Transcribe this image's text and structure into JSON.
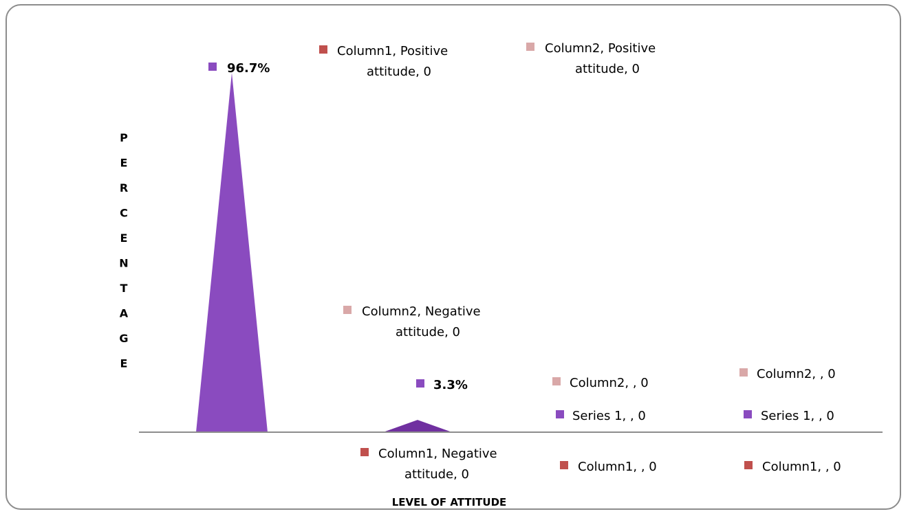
{
  "chart_data": {
    "type": "area",
    "title": "",
    "xlabel": "LEVEL OF ATTITUDE",
    "ylabel": "PERCENTAGE",
    "ylim": [
      0,
      100
    ],
    "grid": false,
    "categories": [
      "Positive attitude",
      "Negative attitude",
      "",
      ""
    ],
    "series": [
      {
        "name": "Series 1",
        "color": "#8a4bbf",
        "values": [
          96.7,
          3.3,
          0,
          0
        ],
        "labels": [
          "96.7%",
          "3.3%",
          "Series 1, , 0",
          "Series 1, , 0"
        ]
      },
      {
        "name": "Column1",
        "color": "#c0504d",
        "values": [
          0,
          0,
          0,
          0
        ],
        "labels": [
          "Column1, Positive attitude, 0",
          "Column1, Negative attitude, 0",
          "Column1, , 0",
          "Column1, , 0"
        ]
      },
      {
        "name": "Column2",
        "color": "#d9a8a8",
        "values": [
          0,
          0,
          0,
          0
        ],
        "labels": [
          "Column2, Positive attitude, 0",
          "Column2, Negative attitude, 0",
          "Column2, , 0",
          "Column2, , 0"
        ]
      }
    ]
  }
}
